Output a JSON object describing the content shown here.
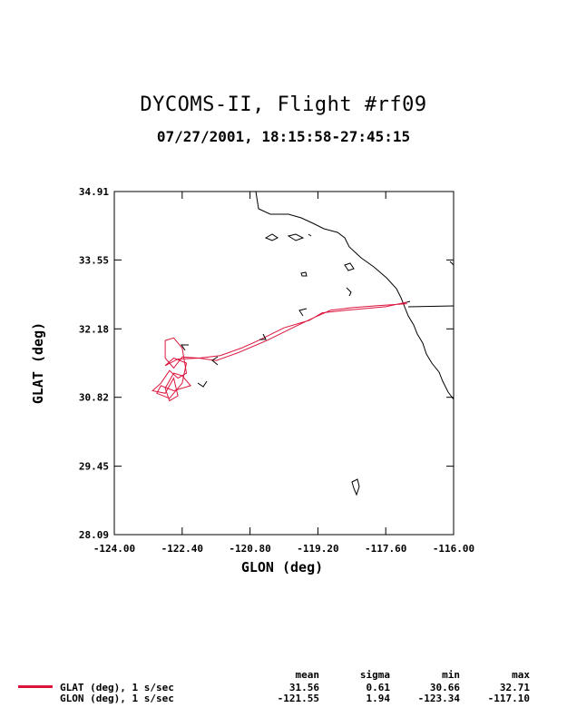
{
  "chart_data": {
    "type": "line",
    "title": "DYCOMS-II, Flight #rf09",
    "subtitle": "07/27/2001, 18:15:58-27:45:15",
    "xlabel": "GLON (deg)",
    "ylabel": "GLAT (deg)",
    "xlim": [
      -124.0,
      -116.0
    ],
    "ylim": [
      28.09,
      34.91
    ],
    "x_ticks": [
      "-124.00",
      "-122.40",
      "-120.80",
      "-119.20",
      "-117.60",
      "-116.00"
    ],
    "y_ticks": [
      "28.09",
      "29.45",
      "30.82",
      "32.18",
      "33.55",
      "34.91"
    ],
    "grid": false,
    "series": [
      {
        "name": "GLAT (deg), 1 s/sec",
        "color": "#dc143c",
        "x": [
          -117.1,
          -117.6,
          -118.4,
          -119.1,
          -119.4,
          -120.0,
          -120.6,
          -121.0,
          -121.5,
          -122.0,
          -122.4,
          -122.6,
          -122.8,
          -122.8,
          -122.6,
          -122.4,
          -122.3,
          -122.5,
          -122.7,
          -122.9,
          -123.1,
          -122.8,
          -122.6,
          -122.5,
          -122.7,
          -122.8,
          -122.6,
          -122.4,
          -122.2,
          -122.6,
          -122.9,
          -123.0,
          -122.7,
          -122.4,
          -122.3,
          -122.6,
          -122.8,
          -122.5,
          -122.0,
          -121.6,
          -121.1,
          -120.4,
          -119.8,
          -119.3,
          -118.9,
          -118.4,
          -117.8,
          -117.1
        ],
        "y": [
          32.71,
          32.62,
          32.56,
          32.5,
          32.35,
          32.2,
          31.95,
          31.8,
          31.65,
          31.6,
          31.62,
          31.4,
          31.6,
          31.95,
          32.0,
          31.8,
          31.3,
          31.2,
          31.35,
          31.1,
          30.95,
          30.9,
          31.2,
          30.85,
          30.75,
          31.0,
          31.3,
          31.25,
          31.05,
          30.95,
          31.05,
          30.9,
          30.8,
          31.1,
          31.5,
          31.6,
          31.45,
          31.58,
          31.6,
          31.55,
          31.7,
          31.95,
          32.2,
          32.4,
          32.55,
          32.6,
          32.64,
          32.68
        ]
      }
    ],
    "stats_header": [
      "mean",
      "sigma",
      "min",
      "max"
    ],
    "stats": [
      {
        "label": "GLAT (deg), 1 s/sec",
        "mean": "31.56",
        "sigma": "0.61",
        "min": "30.66",
        "max": "32.71"
      },
      {
        "label": "GLON (deg), 1 s/sec",
        "mean": "-121.55",
        "sigma": "1.94",
        "min": "-123.34",
        "max": "-117.10"
      }
    ]
  }
}
